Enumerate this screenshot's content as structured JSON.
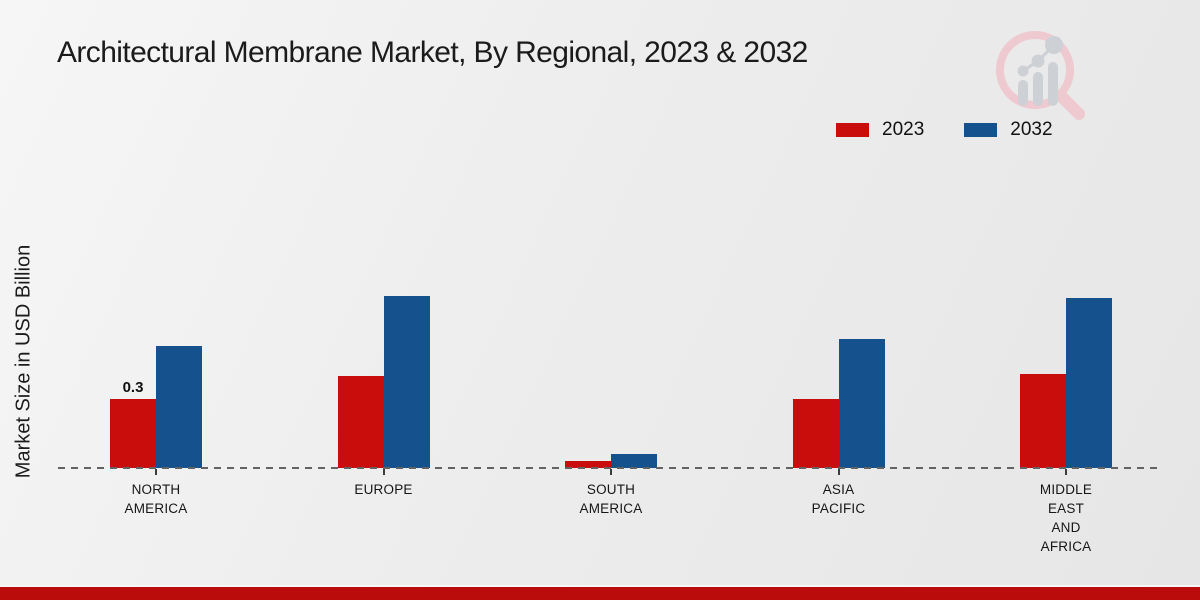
{
  "header": {
    "title": "Architectural Membrane Market, By Regional, 2023 & 2032"
  },
  "colors": {
    "series_2023": "#c90d0d",
    "series_2032": "#15518c",
    "axis_dash": "#636363",
    "banner_red": "#b90c0b",
    "text_dark": "#1b1b1b",
    "watermark_pink": "#eec9cf",
    "watermark_gray": "#cdd0d5"
  },
  "legend": {
    "items": [
      {
        "label": "2023",
        "color": "#c90d0d"
      },
      {
        "label": "2032",
        "color": "#15518c"
      }
    ]
  },
  "watermark_icon": "magnifier-bar-chart-logo",
  "banner": {
    "text": ""
  },
  "chart_data": {
    "type": "bar",
    "title": "Architectural Membrane Market, By Regional, 2023 & 2032",
    "ylabel": "Market Size in USD Billion",
    "unit": "USD Billion",
    "categories": [
      "North America",
      "Europe",
      "South America",
      "Asia Pacific",
      "Middle East and Africa"
    ],
    "tick_label_lines": [
      [
        "NORTH",
        "AMERICA"
      ],
      [
        "EUROPE"
      ],
      [
        "SOUTH",
        "AMERICA"
      ],
      [
        "ASIA",
        "PACIFIC"
      ],
      [
        "MIDDLE",
        "EAST",
        "AND",
        "AFRICA"
      ]
    ],
    "series": [
      {
        "name": "2023",
        "color": "#c90d0d",
        "values": [
          0.3,
          0.4,
          0.03,
          0.3,
          0.41
        ]
      },
      {
        "name": "2032",
        "color": "#15518c",
        "values": [
          0.53,
          0.75,
          0.06,
          0.56,
          0.74
        ]
      }
    ],
    "annotations": [
      {
        "series": "2023",
        "category": "North America",
        "text": "0.3"
      }
    ],
    "ylim": [
      0,
      1.4
    ],
    "grid": false,
    "legend_position": "top-right",
    "baseline_style": "dashed",
    "y_axis_ticks_visible": false
  }
}
